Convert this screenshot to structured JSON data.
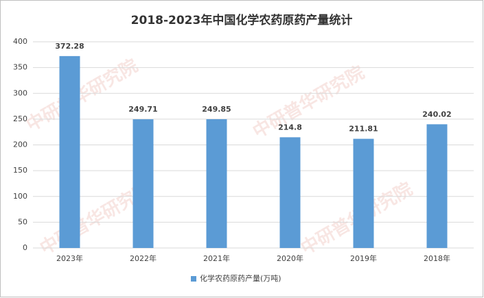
{
  "chart_data": {
    "type": "bar",
    "title": "2018-2023年中国化学农药原药产量统计",
    "categories": [
      "2023年",
      "2022年",
      "2021年",
      "2020年",
      "2019年",
      "2018年"
    ],
    "series": [
      {
        "name": "化学农药原药产量(万吨)",
        "color": "#5b9bd5",
        "values": [
          372.28,
          249.71,
          249.85,
          214.8,
          211.81,
          240.02
        ]
      }
    ],
    "ylim": [
      0,
      400
    ],
    "yticks": [
      0,
      50,
      100,
      150,
      200,
      250,
      300,
      350,
      400
    ],
    "grid": true,
    "legend": "bottom",
    "watermark": "中研普华研究院"
  }
}
